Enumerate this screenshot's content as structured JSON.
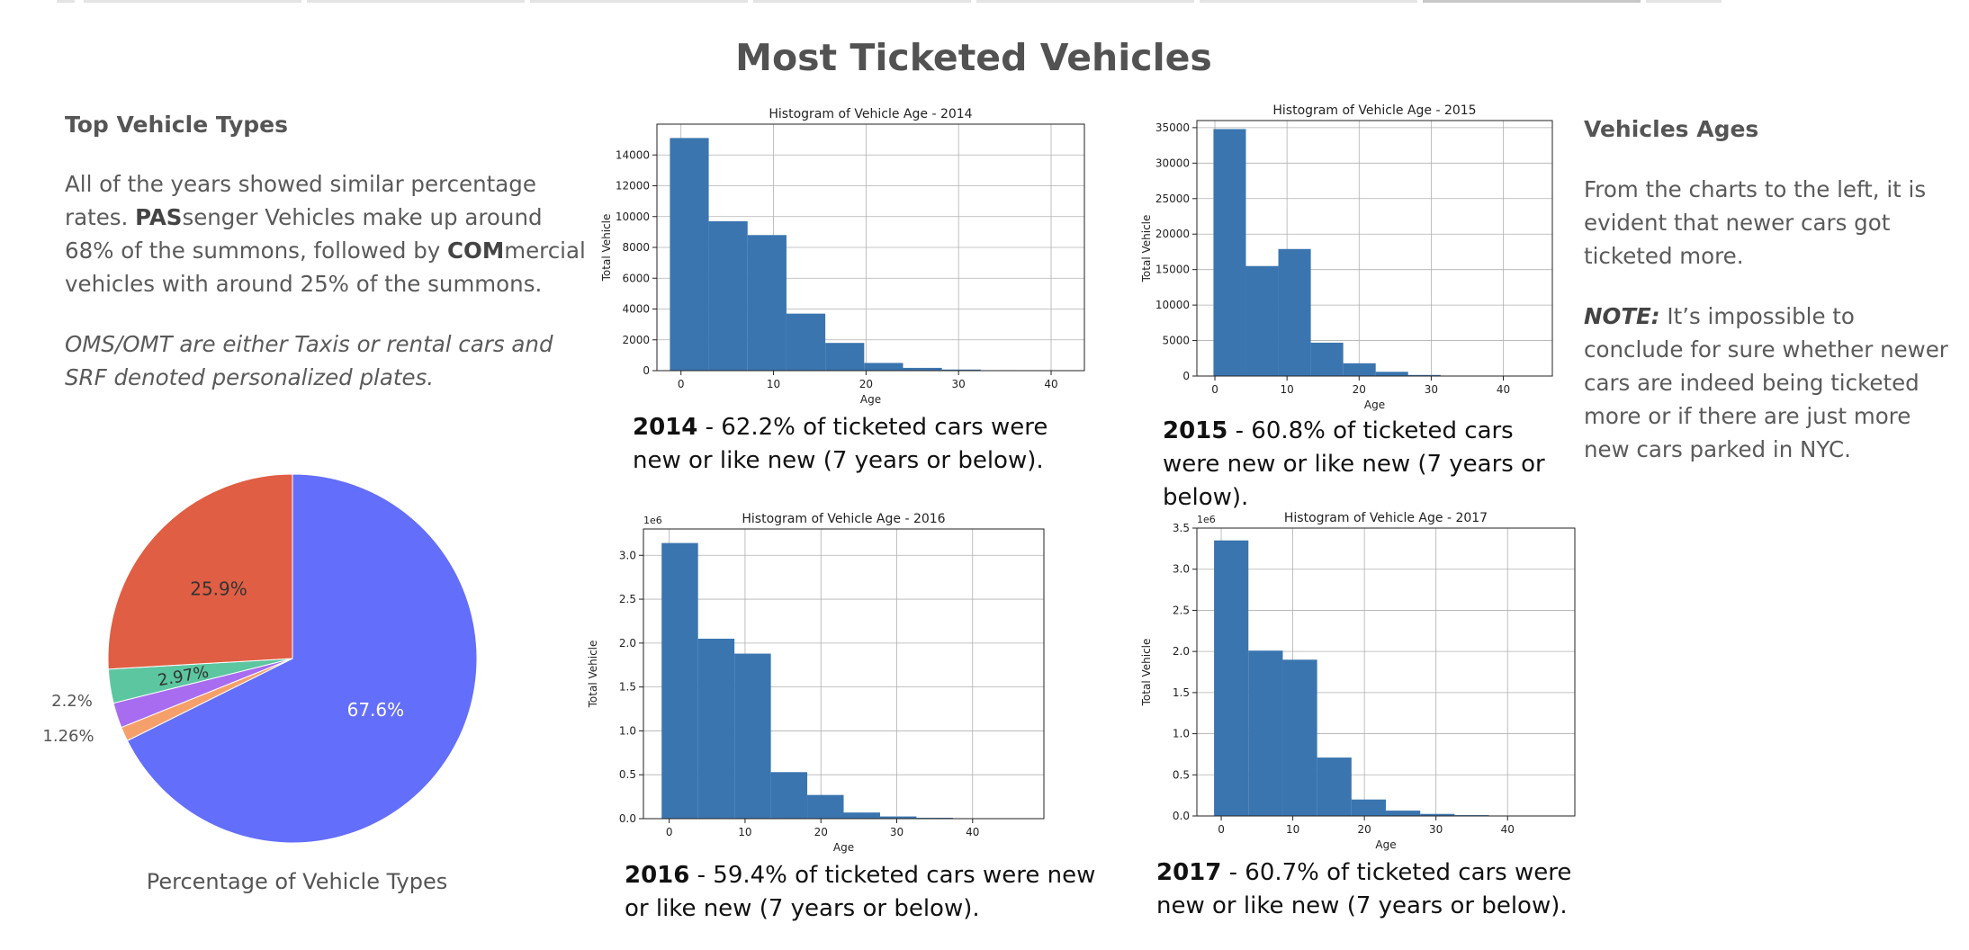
{
  "page": {
    "title": "Most Ticketed Vehicles"
  },
  "top_types": {
    "heading": "Top Vehicle Types",
    "p1": {
      "a": "All of the years showed similar percentage rates. ",
      "pas": "PAS",
      "b": "senger Vehicles make up around 68% of the summons, followed by ",
      "com": "COM",
      "c": "mercial vehicles with around 25% of the summons."
    },
    "p2": "OMS/OMT are either Taxis or rental cars and SRF denoted personalized plates."
  },
  "ages": {
    "heading": "Vehicles Ages",
    "p1": "From the charts to the left, it is evident that newer cars got ticketed more.",
    "note_label": "NOTE:",
    "note_text": " It’s impossible to conclude for sure whether newer cars are indeed being ticketed more or if there are just more new cars parked in NYC."
  },
  "captions": {
    "y2014": {
      "year": "2014",
      "text": " - 62.2% of ticketed cars were new or like new (7 years or below)."
    },
    "y2015": {
      "year": "2015",
      "text": " - 60.8% of ticketed cars were new or like new (7 years or below)."
    },
    "y2016": {
      "year": "2016",
      "text": " -  59.4% of ticketed cars were new or like new (7 years or below)."
    },
    "y2017": {
      "year": "2017",
      "text": " -  60.7% of ticketed cars were new or like new (7 years or below)."
    }
  },
  "colors": {
    "bar": "#3a75b0",
    "pas": "#636EFA",
    "com": "#E05E43",
    "oms": "#5CC6A0",
    "srf": "#A86CF0",
    "omt": "#F5A06A"
  },
  "chart_data": [
    {
      "type": "bar",
      "title": "Histogram of Vehicle Age - 2014",
      "xlabel": "Age",
      "ylabel": "Total Vehicle",
      "scale_label": "",
      "bin_edges": [
        -1.2,
        3.0,
        7.2,
        11.4,
        15.6,
        19.8,
        24.0,
        28.2,
        32.4,
        36.6,
        40.8
      ],
      "values": [
        15100,
        9700,
        8800,
        3700,
        1800,
        500,
        180,
        70,
        30,
        10
      ],
      "xlim": [
        -2.6,
        43.6
      ],
      "ylim": [
        0,
        16000
      ],
      "xticks": [
        0,
        10,
        20,
        30,
        40
      ],
      "yticks": [
        0,
        2000,
        4000,
        6000,
        8000,
        10000,
        12000,
        14000
      ],
      "ytick_labels": [
        "0",
        "2000",
        "4000",
        "6000",
        "8000",
        "10000",
        "12000",
        "14000"
      ],
      "grid": true
    },
    {
      "type": "bar",
      "title": "Histogram of Vehicle Age - 2015",
      "xlabel": "Age",
      "ylabel": "Total Vehicle",
      "scale_label": "",
      "bin_edges": [
        -0.2,
        4.3,
        8.8,
        13.3,
        17.8,
        22.3,
        26.8,
        31.3,
        35.8,
        40.3,
        44.8
      ],
      "values": [
        34800,
        15500,
        17900,
        4700,
        1800,
        600,
        150,
        60,
        20,
        5
      ],
      "xlim": [
        -2.5,
        46.8
      ],
      "ylim": [
        0,
        36000
      ],
      "xticks": [
        0,
        10,
        20,
        30,
        40
      ],
      "yticks": [
        0,
        5000,
        10000,
        15000,
        20000,
        25000,
        30000,
        35000
      ],
      "ytick_labels": [
        "0",
        "5000",
        "10000",
        "15000",
        "20000",
        "25000",
        "30000",
        "35000"
      ],
      "grid": true
    },
    {
      "type": "bar",
      "title": "Histogram of Vehicle Age - 2016",
      "xlabel": "Age",
      "ylabel": "Total Vehicle",
      "scale_label": "1e6",
      "bin_edges": [
        -1.0,
        3.8,
        8.6,
        13.4,
        18.2,
        23.0,
        27.8,
        32.6,
        37.4,
        42.2,
        47.0
      ],
      "values": [
        3.14,
        2.05,
        1.88,
        0.53,
        0.27,
        0.07,
        0.025,
        0.01,
        0.004,
        0.002
      ],
      "xlim": [
        -3.4,
        49.4
      ],
      "ylim": [
        0,
        3.3
      ],
      "xticks": [
        0,
        10,
        20,
        30,
        40
      ],
      "yticks": [
        0,
        0.5,
        1.0,
        1.5,
        2.0,
        2.5,
        3.0
      ],
      "ytick_labels": [
        "0.0",
        "0.5",
        "1.0",
        "1.5",
        "2.0",
        "2.5",
        "3.0"
      ],
      "grid": true
    },
    {
      "type": "bar",
      "title": "Histogram of Vehicle Age - 2017",
      "xlabel": "Age",
      "ylabel": "Total Vehicle",
      "scale_label": "1e6",
      "bin_edges": [
        -1.0,
        3.8,
        8.6,
        13.4,
        18.2,
        23.0,
        27.8,
        32.6,
        37.4,
        42.2,
        47.0
      ],
      "values": [
        3.35,
        2.01,
        1.9,
        0.71,
        0.2,
        0.065,
        0.025,
        0.01,
        0.005,
        0.002
      ],
      "xlim": [
        -3.4,
        49.4
      ],
      "ylim": [
        0,
        3.5
      ],
      "xticks": [
        0,
        10,
        20,
        30,
        40
      ],
      "yticks": [
        0,
        0.5,
        1.0,
        1.5,
        2.0,
        2.5,
        3.0,
        3.5
      ],
      "ytick_labels": [
        "0.0",
        "0.5",
        "1.0",
        "1.5",
        "2.0",
        "2.5",
        "3.0",
        "3.5"
      ],
      "grid": true
    },
    {
      "type": "pie",
      "title": "Percentage of Vehicle Types",
      "slices": [
        {
          "value": 67.6,
          "label": "67.6%",
          "color": "#636EFA"
        },
        {
          "value": 1.26,
          "label": "1.26%",
          "color": "#F5A06A"
        },
        {
          "value": 2.2,
          "label": "2.2%",
          "color": "#A86CF0"
        },
        {
          "value": 2.97,
          "label": "2.97%",
          "color": "#5CC6A0"
        },
        {
          "value": 25.9,
          "label": "25.9%",
          "color": "#E05E43"
        }
      ]
    }
  ]
}
